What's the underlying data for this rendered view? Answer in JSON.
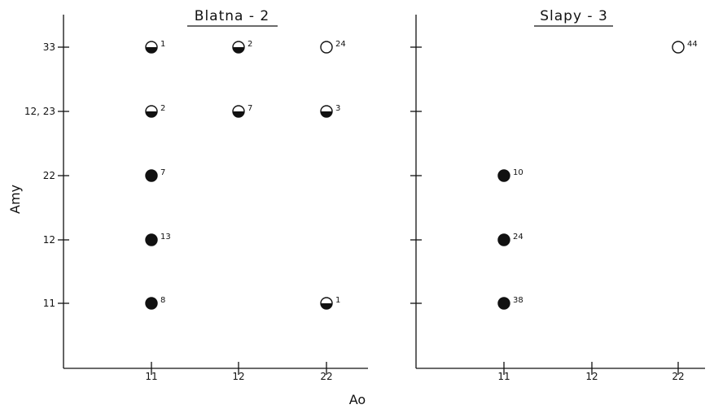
{
  "chart_data": [
    {
      "type": "scatter",
      "title": "Blatna - 2",
      "x_categories": [
        "11",
        "12",
        "22"
      ],
      "y_categories": [
        "11",
        "12",
        "22",
        "12, 23",
        "33"
      ],
      "points": [
        {
          "x": "11",
          "y": "33",
          "count": "1",
          "fill": "half"
        },
        {
          "x": "12",
          "y": "33",
          "count": "2",
          "fill": "half"
        },
        {
          "x": "22",
          "y": "33",
          "count": "24",
          "fill": "open"
        },
        {
          "x": "11",
          "y": "12, 23",
          "count": "2",
          "fill": "half"
        },
        {
          "x": "12",
          "y": "12, 23",
          "count": "7",
          "fill": "half"
        },
        {
          "x": "22",
          "y": "12, 23",
          "count": "3",
          "fill": "half"
        },
        {
          "x": "11",
          "y": "22",
          "count": "7",
          "fill": "solid"
        },
        {
          "x": "11",
          "y": "12",
          "count": "13",
          "fill": "solid"
        },
        {
          "x": "11",
          "y": "11",
          "count": "8",
          "fill": "solid"
        },
        {
          "x": "22",
          "y": "11",
          "count": "1",
          "fill": "half"
        }
      ]
    },
    {
      "type": "scatter",
      "title": "Slapy - 3",
      "x_categories": [
        "11",
        "12",
        "22"
      ],
      "y_categories": [
        "11",
        "12",
        "22",
        "12, 23",
        "33"
      ],
      "points": [
        {
          "x": "22",
          "y": "33",
          "count": "44",
          "fill": "open"
        },
        {
          "x": "11",
          "y": "22",
          "count": "10",
          "fill": "solid"
        },
        {
          "x": "11",
          "y": "12",
          "count": "24",
          "fill": "solid"
        },
        {
          "x": "11",
          "y": "11",
          "count": "38",
          "fill": "solid"
        }
      ]
    }
  ],
  "ylabel": "Amy",
  "xlabel": "Ao",
  "colors": {
    "ink": "#111111",
    "background": "#ffffff"
  }
}
